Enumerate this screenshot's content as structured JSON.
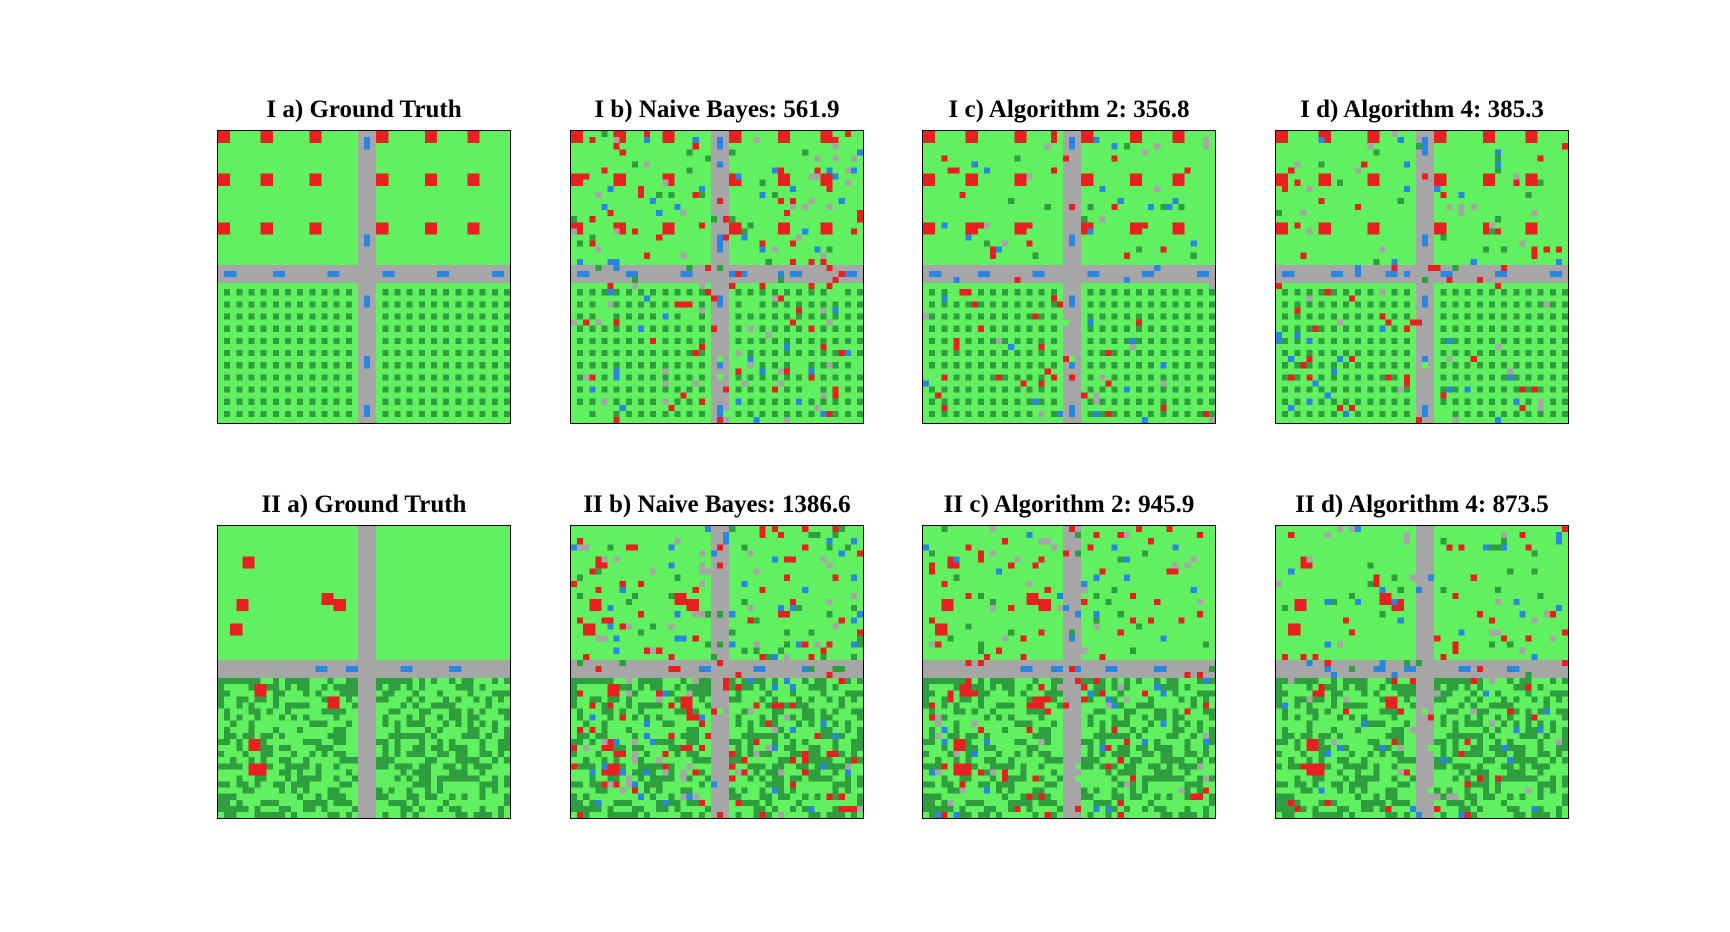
{
  "figure": {
    "colors": {
      "grass": "#60f060",
      "dark_grass": "#2e9e3e",
      "road": "#a6a6a6",
      "building": "#e82020",
      "water": "#2a86e0"
    },
    "rows": [
      {
        "row_id": "I",
        "panels": [
          {
            "title": "I a) Ground Truth",
            "kind": "truth",
            "scenario": 1
          },
          {
            "title": "I b) Naive Bayes: 561.9",
            "kind": "noisy",
            "scenario": 1,
            "noise": 0.1
          },
          {
            "title": "I c) Algorithm 2: 356.8",
            "kind": "noisy",
            "scenario": 1,
            "noise": 0.05
          },
          {
            "title": "I d) Algorithm 4: 385.3",
            "kind": "noisy",
            "scenario": 1,
            "noise": 0.06
          }
        ]
      },
      {
        "row_id": "II",
        "panels": [
          {
            "title": "II a) Ground Truth",
            "kind": "truth",
            "scenario": 2
          },
          {
            "title": "II b) Naive Bayes: 1386.6",
            "kind": "noisy",
            "scenario": 2,
            "noise": 0.16
          },
          {
            "title": "II c) Algorithm 2: 945.9",
            "kind": "noisy",
            "scenario": 2,
            "noise": 0.09
          },
          {
            "title": "II d) Algorithm 4: 873.5",
            "kind": "noisy",
            "scenario": 2,
            "noise": 0.08
          }
        ]
      }
    ]
  }
}
